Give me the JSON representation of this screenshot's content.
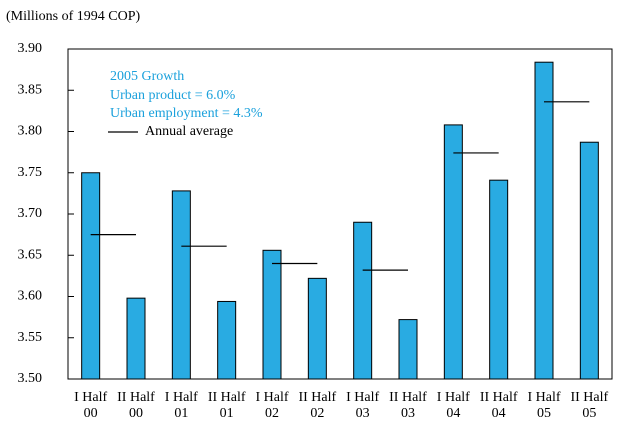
{
  "chart_data": {
    "type": "bar",
    "y_label": "(Millions of 1994 COP)",
    "categories": [
      [
        "I Half",
        "00"
      ],
      [
        "II Half",
        "00"
      ],
      [
        "I Half",
        "01"
      ],
      [
        "II Half",
        "01"
      ],
      [
        "I Half",
        "02"
      ],
      [
        "II Half",
        "02"
      ],
      [
        "I Half",
        "03"
      ],
      [
        "II Half",
        "03"
      ],
      [
        "I Half",
        "04"
      ],
      [
        "II Half",
        "04"
      ],
      [
        "I Half",
        "05"
      ],
      [
        "II Half",
        "05"
      ]
    ],
    "values": [
      3.75,
      3.598,
      3.728,
      3.594,
      3.656,
      3.622,
      3.69,
      3.572,
      3.808,
      3.741,
      3.884,
      3.787
    ],
    "color": "#29abe2",
    "annual_average": {
      "name": "Annual average",
      "color": "#000000",
      "values": [
        3.675,
        3.661,
        3.64,
        3.632,
        3.774,
        3.836
      ]
    },
    "annotations": [
      "2005 Growth",
      "Urban product = 6.0%",
      "Urban employment  = 4.3%"
    ],
    "ylim": [
      3.5,
      3.9
    ],
    "yticks": [
      {
        "value": 3.5,
        "label": "3.50"
      },
      3.55,
      {
        "value": 3.6,
        "label": "3.60"
      },
      3.65,
      {
        "value": 3.7,
        "label": "3.70"
      },
      3.75,
      {
        "value": 3.8,
        "label": "3.80"
      },
      3.85,
      {
        "value": 3.9,
        "label": "3.90"
      }
    ],
    "grid": false
  }
}
